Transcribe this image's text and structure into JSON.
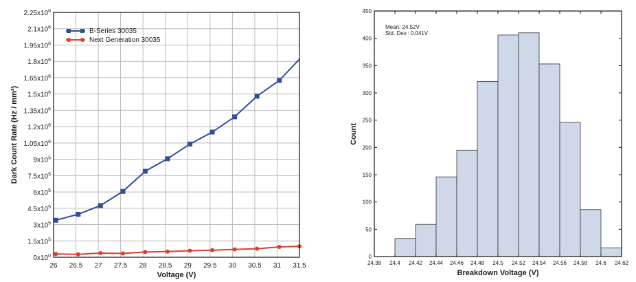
{
  "chart_data": [
    {
      "type": "line",
      "xlabel": "Voltage (V)",
      "ylabel": "Dark Count Rate (Hz / mm²)",
      "xlim": [
        26,
        31.5
      ],
      "ylim": [
        0,
        2250000
      ],
      "x_ticks": [
        "26",
        "26.5",
        "27",
        "27.5",
        "28",
        "28.5",
        "29",
        "29.5",
        "30",
        "30.5",
        "31",
        "31.5"
      ],
      "y_ticks": [
        {
          "mant": "0x10",
          "exp": "0",
          "value": 0
        },
        {
          "mant": "1.5x10",
          "exp": "5",
          "value": 150000
        },
        {
          "mant": "3x10",
          "exp": "5",
          "value": 300000
        },
        {
          "mant": "4.5x10",
          "exp": "5",
          "value": 450000
        },
        {
          "mant": "6x10",
          "exp": "5",
          "value": 600000
        },
        {
          "mant": "7.5x10",
          "exp": "5",
          "value": 750000
        },
        {
          "mant": "9x10",
          "exp": "5",
          "value": 900000
        },
        {
          "mant": "1.05x10",
          "exp": "6",
          "value": 1050000
        },
        {
          "mant": "1.2x10",
          "exp": "6",
          "value": 1200000
        },
        {
          "mant": "1.35x10",
          "exp": "6",
          "value": 1350000
        },
        {
          "mant": "1.5x10",
          "exp": "6",
          "value": 1500000
        },
        {
          "mant": "1.65x10",
          "exp": "6",
          "value": 1650000
        },
        {
          "mant": "1.8x10",
          "exp": "6",
          "value": 1800000
        },
        {
          "mant": "1.95x10",
          "exp": "6",
          "value": 1950000
        },
        {
          "mant": "2.1x10",
          "exp": "6",
          "value": 2100000
        },
        {
          "mant": "2.25x10",
          "exp": "6",
          "value": 2250000
        }
      ],
      "grid": true,
      "legend_position": "top-left",
      "series": [
        {
          "name": "B-Series 30035",
          "color": "#2e4f9a",
          "marker": "square",
          "x": [
            26.05,
            26.55,
            27.05,
            27.55,
            28.05,
            28.55,
            29.05,
            29.55,
            30.05,
            30.55,
            31.05,
            31.5
          ],
          "y": [
            340000,
            395000,
            475000,
            605000,
            790000,
            905000,
            1040000,
            1150000,
            1290000,
            1480000,
            1625000,
            1820000
          ],
          "markers_until": 31.05
        },
        {
          "name": "Next Generation 30035",
          "color": "#d9402b",
          "marker": "circle",
          "x": [
            26.05,
            26.55,
            27.05,
            27.55,
            28.05,
            28.55,
            29.05,
            29.55,
            30.05,
            30.55,
            31.05,
            31.5
          ],
          "y": [
            30000,
            27000,
            38000,
            35000,
            48000,
            52000,
            60000,
            65000,
            72000,
            78000,
            95000,
            100000
          ],
          "markers_until": 31.5
        }
      ]
    },
    {
      "type": "bar",
      "xlabel": "Breakdown Voltage (V)",
      "ylabel": "Count",
      "xlim": [
        24.38,
        24.62
      ],
      "ylim": [
        0,
        450
      ],
      "x_ticks": [
        "24.38",
        "24.4",
        "24.42",
        "24.44",
        "24.46",
        "24.48",
        "24.5",
        "24.52",
        "24.54",
        "24.56",
        "24.58",
        "24.6",
        "24.62"
      ],
      "y_ticks": [
        "0",
        "50",
        "100",
        "150",
        "200",
        "250",
        "300",
        "350",
        "400",
        "450"
      ],
      "bin_edges": [
        24.4,
        24.42,
        24.44,
        24.46,
        24.48,
        24.5,
        24.52,
        24.54,
        24.56,
        24.58,
        24.6,
        24.62
      ],
      "values": [
        33,
        59,
        146,
        195,
        321,
        406,
        410,
        353,
        246,
        86,
        16
      ],
      "bar_color": "#ced8e8",
      "edge_color": "#333333",
      "grid": false,
      "annotations": [
        "Mean: 24.52V",
        "Std. Dev.: 0.041V"
      ]
    }
  ]
}
